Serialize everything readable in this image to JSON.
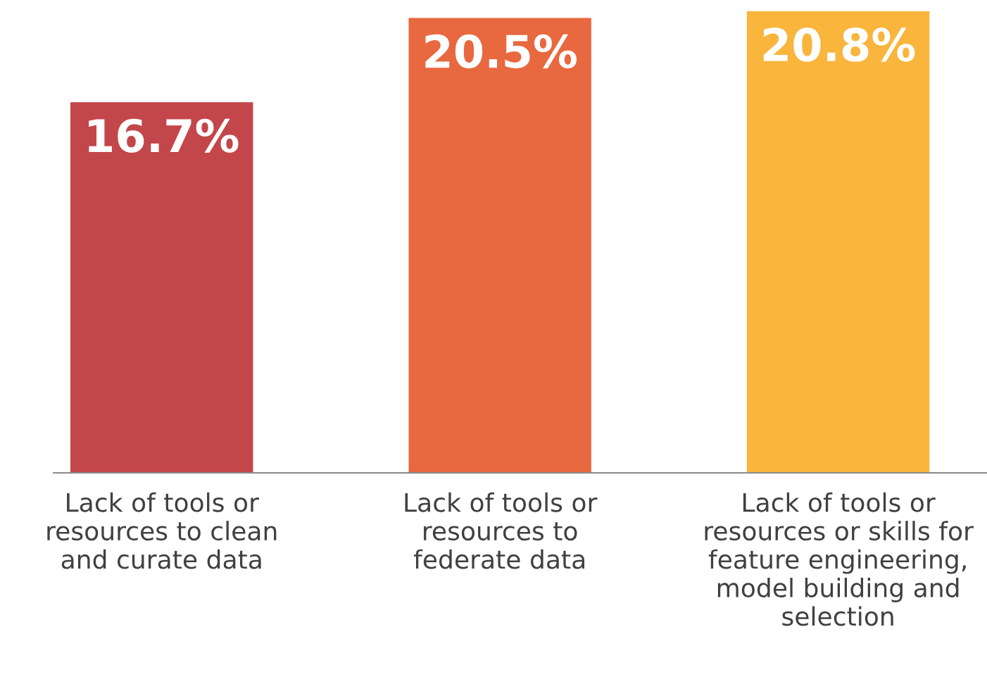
{
  "chart_data": {
    "type": "bar",
    "categories": [
      "Lack of tools or\nresources to clean\nand curate data",
      "Lack of tools or\nresources to\nfederate data",
      "Lack of tools or\nresources or skills for\nfeature engineering,\nmodel building and\nselection"
    ],
    "values": [
      16.7,
      20.5,
      20.8
    ],
    "colors": [
      "#c3464b",
      "#e8683f",
      "#f9b53c"
    ],
    "value_labels": [
      "16.7%",
      "20.5%",
      "20.8%"
    ]
  }
}
